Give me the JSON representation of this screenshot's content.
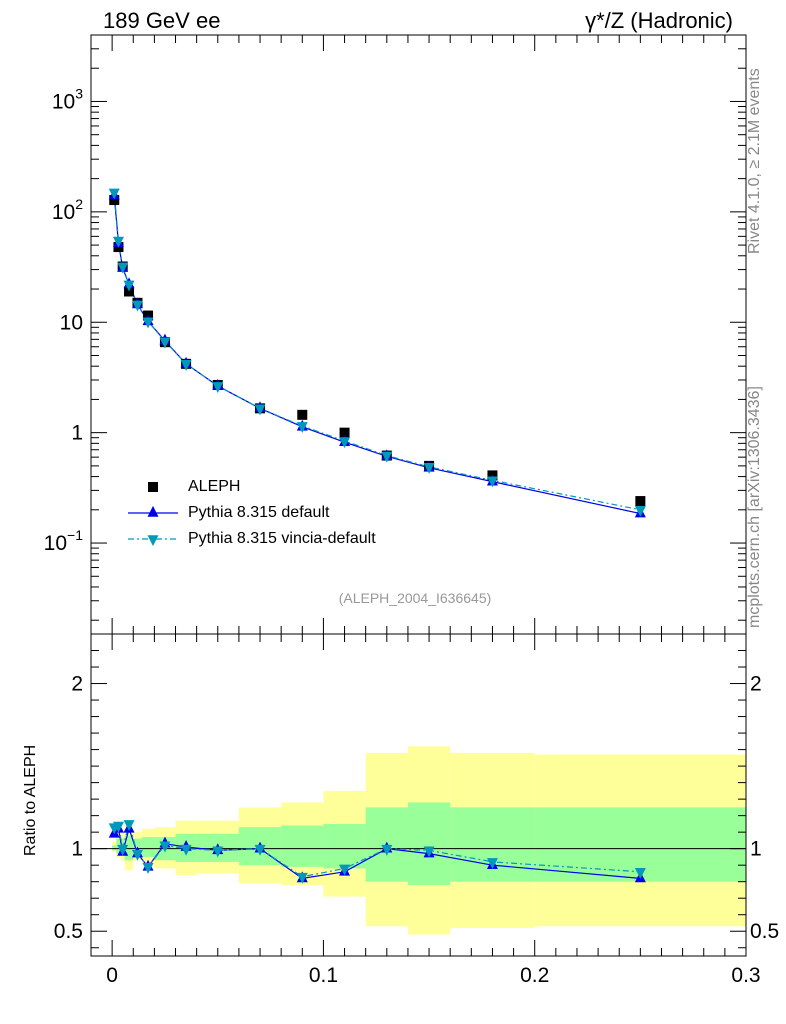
{
  "header": {
    "left": "189 GeV ee",
    "right": "γ*/Z (Hadronic)"
  },
  "side": {
    "rivet": "Rivet 4.1.0, ≥ 2.1M events",
    "mcplots": "mcplots.cern.ch [arXiv:1306.3436]"
  },
  "analysis_id": "(ALEPH_2004_I636645)",
  "ratio_ylabel": "Ratio to ALEPH",
  "colors": {
    "data": "#000000",
    "default": "#0000ee",
    "vincia": "#0099bb",
    "band_outer": "#ffff99",
    "band_inner": "#99ff99"
  },
  "chart_data": [
    {
      "type": "scatter",
      "scale": "log",
      "xlim": [
        -0.01,
        0.3
      ],
      "ylim": [
        0.015,
        4000
      ],
      "yticks": [
        {
          "value": 1000,
          "base": "10",
          "exp": "3"
        },
        {
          "value": 100,
          "base": "10",
          "exp": "2"
        },
        {
          "value": 10,
          "base": "10",
          "exp": ""
        },
        {
          "value": 1,
          "base": "1",
          "exp": ""
        },
        {
          "value": 0.1,
          "base": "10",
          "exp": "−1"
        }
      ],
      "x": [
        0.001,
        0.003,
        0.005,
        0.008,
        0.012,
        0.017,
        0.025,
        0.035,
        0.05,
        0.07,
        0.09,
        0.11,
        0.13,
        0.15,
        0.18,
        0.25
      ],
      "series": [
        {
          "name": "ALEPH",
          "marker": "square",
          "values": [
            128,
            48,
            32,
            19,
            15,
            11.5,
            6.6,
            4.2,
            2.7,
            1.66,
            1.45,
            1.0,
            0.62,
            0.5,
            0.41,
            0.24
          ]
        },
        {
          "name": "Pythia 8.315 default",
          "marker": "triangle-up",
          "values": [
            140,
            52,
            31,
            22,
            14.5,
            10.2,
            6.8,
            4.2,
            2.65,
            1.66,
            1.13,
            0.82,
            0.61,
            0.48,
            0.36,
            0.185
          ]
        },
        {
          "name": "Pythia 8.315 vincia-default",
          "marker": "triangle-down",
          "values": [
            150,
            55,
            32,
            22,
            14.5,
            10.2,
            6.7,
            4.2,
            2.65,
            1.66,
            1.15,
            0.84,
            0.62,
            0.49,
            0.37,
            0.2
          ]
        }
      ]
    },
    {
      "type": "scatter",
      "ylabel": "Ratio to ALEPH",
      "xlim": [
        -0.01,
        0.3
      ],
      "ylim": [
        0.35,
        2.3
      ],
      "xticks": [
        "0",
        "0.1",
        "0.2",
        "0.3"
      ],
      "xtick_values": [
        0,
        0.1,
        0.2,
        0.3
      ],
      "yticks": [
        "0.5",
        "1",
        "2"
      ],
      "ytick_values": [
        0.5,
        1,
        2
      ],
      "x": [
        0.001,
        0.003,
        0.005,
        0.008,
        0.012,
        0.017,
        0.025,
        0.035,
        0.05,
        0.07,
        0.09,
        0.11,
        0.13,
        0.15,
        0.18,
        0.25
      ],
      "series": [
        {
          "name": "Pythia 8.315 default",
          "values": [
            1.09,
            1.12,
            0.98,
            1.12,
            0.97,
            0.89,
            1.03,
            1.01,
            0.99,
            1.0,
            0.82,
            0.86,
            1.0,
            0.97,
            0.9,
            0.82
          ]
        },
        {
          "name": "Pythia 8.315 vincia-default",
          "values": [
            1.13,
            1.14,
            1.0,
            1.15,
            0.97,
            0.89,
            1.02,
            1.0,
            0.99,
            1.0,
            0.83,
            0.88,
            1.0,
            0.99,
            0.92,
            0.86
          ]
        }
      ],
      "bands": {
        "edges": [
          0,
          0.002,
          0.004,
          0.006,
          0.01,
          0.014,
          0.02,
          0.03,
          0.04,
          0.06,
          0.08,
          0.1,
          0.12,
          0.14,
          0.16,
          0.2,
          0.3
        ],
        "outer": [
          [
            0.98,
            1.04
          ],
          [
            0.95,
            1.1
          ],
          [
            0.93,
            1.1
          ],
          [
            0.87,
            1.14
          ],
          [
            0.93,
            1.1
          ],
          [
            0.91,
            1.12
          ],
          [
            0.88,
            1.13
          ],
          [
            0.84,
            1.17
          ],
          [
            0.85,
            1.17
          ],
          [
            0.79,
            1.25
          ],
          [
            0.78,
            1.28
          ],
          [
            0.71,
            1.35
          ],
          [
            0.53,
            1.58
          ],
          [
            0.48,
            1.62
          ],
          [
            0.52,
            1.58
          ],
          [
            0.53,
            1.57
          ]
        ],
        "inner": [
          [
            0.99,
            1.02
          ],
          [
            0.97,
            1.06
          ],
          [
            0.96,
            1.06
          ],
          [
            0.93,
            1.08
          ],
          [
            0.96,
            1.06
          ],
          [
            0.95,
            1.07
          ],
          [
            0.93,
            1.07
          ],
          [
            0.92,
            1.09
          ],
          [
            0.92,
            1.09
          ],
          [
            0.9,
            1.13
          ],
          [
            0.89,
            1.14
          ],
          [
            0.88,
            1.15
          ],
          [
            0.8,
            1.25
          ],
          [
            0.78,
            1.28
          ],
          [
            0.8,
            1.25
          ],
          [
            0.8,
            1.25
          ]
        ]
      }
    }
  ]
}
